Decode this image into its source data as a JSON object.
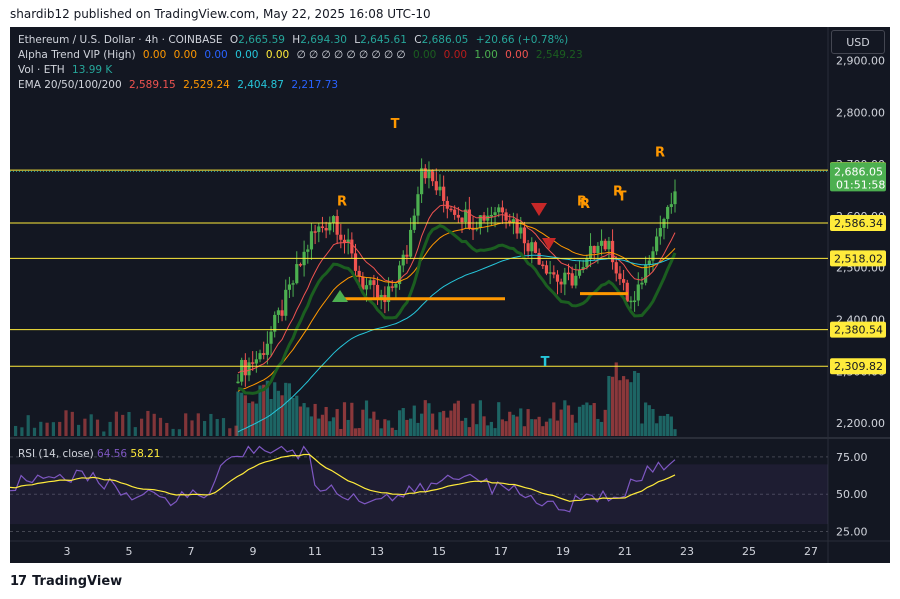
{
  "caption": "shardib12 published on TradingView.com, May 22, 2025 16:08 UTC-10",
  "brand": "TradingView",
  "currency": "USD",
  "legend": {
    "symbol": "Ethereum / U.S. Dollar · 4h · COINBASE",
    "open_label": "O",
    "open": "2,665.59",
    "high_label": "H",
    "high": "2,694.30",
    "low_label": "L",
    "low": "2,645.61",
    "close_label": "C",
    "close": "2,686.05",
    "change": "+20.66 (+0.78%)",
    "alpha_name": "Alpha Trend VIP (High)",
    "alpha_values": [
      "0.00",
      "0.00",
      "0.00",
      "0.00",
      "0.00"
    ],
    "alpha_phis": "∅ ∅ ∅ ∅ ∅ ∅ ∅ ∅ ∅",
    "alpha_tail": [
      "0.00",
      "0.00",
      "1.00",
      "0.00",
      "2,549.23"
    ],
    "vol_name": "Vol · ETH",
    "vol_value": "13.99 K",
    "ema_name": "EMA 20/50/100/200",
    "ema_values": [
      "2,589.15",
      "2,529.24",
      "2,404.87",
      "2,217.73"
    ]
  },
  "rsi_legend": {
    "name": "RSI (14, close)",
    "v1": "64.56",
    "v2": "58.21"
  },
  "colors": {
    "bg": "#131722",
    "up": "#26a69a",
    "down": "#ef5350",
    "up_bright": "#4caf50",
    "level": "#ffeb3b",
    "ema20": "#ef5350",
    "ema50": "#ff9800",
    "ema100": "#26c6da",
    "ema200": "#2962ff",
    "rsi": "#7e57c2",
    "rsi_ma": "#ffeb3b",
    "trend": "#1b5e20",
    "signal_orange": "#ff9800"
  },
  "chart_data": {
    "type": "candlestick",
    "title": "Ethereum / U.S. Dollar · 4h · COINBASE",
    "ylim": [
      2175,
      2965
    ],
    "y_ticks": [
      "2,900.00",
      "2,800.00",
      "2,700.00",
      "2,600.00",
      "2,500.00",
      "2,400.00",
      "2,300.00",
      "2,200.00"
    ],
    "x_ticks": [
      "3",
      "5",
      "7",
      "9",
      "11",
      "13",
      "15",
      "17",
      "19",
      "21",
      "23",
      "25",
      "27"
    ],
    "level_lines": [
      "2,688.43",
      "2,586.34",
      "2,518.02",
      "2,380.54",
      "2,309.82"
    ],
    "price_tag": {
      "price": "2,686.05",
      "countdown": "01:51:58"
    },
    "signals": [
      "T",
      "R",
      "R",
      "T",
      "R",
      "T",
      "R",
      "R"
    ],
    "rsi_ticks": [
      "75.00",
      "50.00",
      "25.00"
    ],
    "rsi_ylim": [
      20,
      85
    ]
  }
}
